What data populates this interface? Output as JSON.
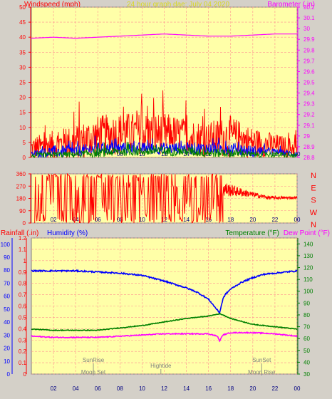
{
  "header": {
    "left_title": "Windspeed (mph)",
    "center_title": "24 hour graph dae:  July 04 2020",
    "right_title": "Barometer (.in)"
  },
  "colors": {
    "background": "#d4d0c8",
    "plot_bg": "#ffffa8",
    "grid": "#ff9090",
    "red": "#ff0000",
    "blue": "#0000ff",
    "green": "#008000",
    "magenta": "#ff00ff",
    "navy": "#0000ff",
    "olive": "#d8d820",
    "gray": "#808080"
  },
  "x_ticks": [
    "02",
    "04",
    "06",
    "08",
    "10",
    "12",
    "14",
    "16",
    "18",
    "20",
    "22",
    "00"
  ],
  "chart_data": [
    {
      "type": "line",
      "name": "wind-barometer",
      "x_range": [
        0,
        24
      ],
      "left_axis": {
        "label": "Windspeed (mph)",
        "ticks": [
          0,
          5,
          10,
          15,
          20,
          25,
          30,
          35,
          40,
          45,
          50
        ],
        "ylim": [
          0,
          50
        ]
      },
      "right_axis": {
        "label": "Barometer (.in)",
        "ticks": [
          "28.8",
          "28.9",
          "29",
          "29.1",
          "29.2",
          "29.3",
          "29.4",
          "29.5",
          "29.6",
          "29.7",
          "29.8",
          "29.9",
          "30",
          "30.1",
          "30.2"
        ],
        "ylim": [
          28.8,
          30.2
        ]
      },
      "series": [
        {
          "axis": "right",
          "color": "#ff00ff",
          "x": [
            0,
            2,
            4,
            6,
            8,
            10,
            12,
            14,
            16,
            18,
            20,
            22,
            24
          ],
          "values": [
            29.91,
            29.92,
            29.91,
            29.92,
            29.93,
            29.94,
            29.95,
            29.94,
            29.93,
            29.93,
            29.94,
            29.95,
            29.95
          ]
        },
        {
          "axis": "left",
          "color": "#ff0000",
          "noisy": true,
          "x": [
            0,
            2,
            4,
            6,
            8,
            10,
            12,
            14,
            16,
            18,
            20,
            22,
            24
          ],
          "values": [
            3,
            4,
            5,
            7,
            8,
            8,
            8,
            7,
            6,
            7,
            5,
            4,
            3
          ],
          "amplitude": [
            4,
            5,
            6,
            7,
            7,
            7,
            7,
            6,
            6,
            7,
            5,
            4,
            3
          ]
        },
        {
          "axis": "left",
          "color": "#0000ff",
          "noisy": true,
          "x": [
            0,
            2,
            4,
            6,
            8,
            10,
            12,
            14,
            16,
            18,
            20,
            22,
            24
          ],
          "values": [
            1,
            2,
            2,
            3,
            3,
            3,
            3,
            3,
            3,
            3,
            2,
            2,
            1
          ],
          "amplitude": [
            1,
            2,
            2,
            2,
            2,
            2,
            2,
            2,
            2,
            2,
            2,
            1,
            1
          ]
        },
        {
          "axis": "left",
          "color": "#008000",
          "noisy": true,
          "x": [
            0,
            2,
            4,
            6,
            8,
            10,
            12,
            14,
            16,
            18,
            20,
            22,
            24
          ],
          "values": [
            0.5,
            1,
            1,
            1.5,
            2,
            2,
            2,
            2,
            1.5,
            1.5,
            1,
            1,
            0.5
          ],
          "amplitude": [
            0.8,
            1,
            1,
            1.5,
            1.5,
            1.5,
            1.5,
            1.5,
            1.5,
            1.5,
            1,
            1,
            0.8
          ]
        }
      ]
    },
    {
      "type": "line",
      "name": "wind-direction",
      "x_range": [
        0,
        24
      ],
      "left_axis": {
        "ticks": [
          0,
          90,
          180,
          270,
          360
        ],
        "ylim": [
          0,
          360
        ]
      },
      "right_axis": {
        "ticks": [
          "N",
          "W",
          "S",
          "E",
          "N"
        ]
      },
      "series": [
        {
          "color": "#ff0000",
          "segments": [
            {
              "x0": 0.3,
              "x1": 17.3,
              "mode": "erratic"
            },
            {
              "x0": 17.3,
              "x1": 24,
              "mode": "settling",
              "start": 250,
              "end": 185
            }
          ]
        }
      ]
    },
    {
      "type": "line",
      "name": "temperature-humidity",
      "x_range": [
        0,
        24
      ],
      "left_axis_outer": {
        "label": "Rainfall (.in)",
        "ticks": [
          0,
          10,
          20,
          30,
          40,
          50,
          60,
          70,
          80,
          90,
          100
        ]
      },
      "left_axis_inner": {
        "label": "Humidity (%)",
        "ticks": [
          "0",
          "0.1",
          "0.2",
          "0.3",
          "0.4",
          "0.5",
          "0.6",
          "0.7",
          "0.8",
          "0.9",
          "1",
          "1.1",
          "1.2"
        ],
        "ylim": [
          0,
          1.2
        ]
      },
      "right_axis": {
        "label_temp": "Temperature (°F)",
        "label_dew": "Dew Point (°F)",
        "ticks": [
          30,
          40,
          50,
          60,
          70,
          80,
          90,
          100,
          110,
          120,
          130,
          140
        ],
        "ylim": [
          30,
          145
        ]
      },
      "series": [
        {
          "name": "Humidity",
          "color": "#0000ff",
          "axis": "left_outer",
          "x": [
            0,
            2,
            4,
            6,
            8,
            10,
            12,
            13,
            14,
            15,
            16,
            16.5,
            17,
            17.3,
            17.5,
            18,
            19,
            20,
            21,
            22,
            23,
            24
          ],
          "values": [
            91,
            91,
            91,
            90,
            89,
            87,
            82,
            79,
            76,
            72,
            66,
            60,
            54,
            66,
            70,
            75,
            81,
            85,
            88,
            89,
            90,
            91
          ]
        },
        {
          "name": "Temperature",
          "color": "#008000",
          "axis": "right",
          "x": [
            0,
            2,
            4,
            6,
            8,
            10,
            12,
            14,
            16,
            17,
            17.3,
            18,
            20,
            22,
            24
          ],
          "values": [
            68,
            67,
            67,
            67,
            69,
            71,
            74,
            77,
            79,
            81,
            80,
            77,
            72,
            70,
            68
          ]
        },
        {
          "name": "Dew Point",
          "color": "#ff00ff",
          "axis": "right",
          "x": [
            0,
            2,
            4,
            6,
            8,
            10,
            12,
            14,
            16,
            16.8,
            17,
            17.3,
            18,
            20,
            22,
            24
          ],
          "values": [
            62,
            61,
            61,
            61,
            62,
            63,
            64,
            64,
            64,
            62,
            58,
            63,
            65,
            65,
            64,
            62
          ]
        }
      ],
      "events": [
        {
          "label": "SunRise",
          "x": 5.6,
          "row": "top"
        },
        {
          "label": "Moon Set",
          "x": 5.6,
          "row": "bottom"
        },
        {
          "label": "Hightide",
          "x": 11.7,
          "row": "middle"
        },
        {
          "label": "SunSet",
          "x": 20.8,
          "row": "top"
        },
        {
          "label": "Moon Rise",
          "x": 20.8,
          "row": "bottom"
        }
      ]
    }
  ]
}
